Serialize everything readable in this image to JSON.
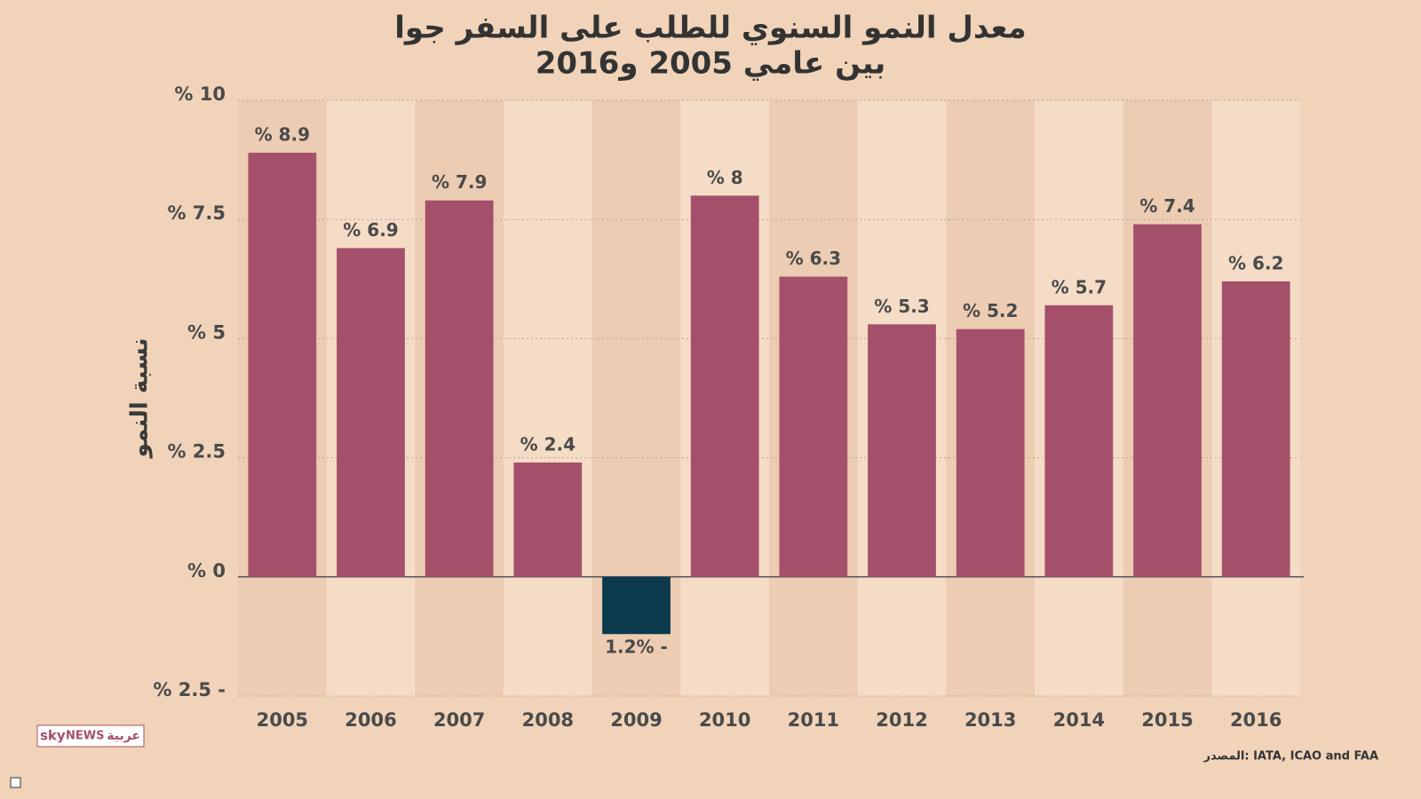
{
  "chart_data": {
    "type": "bar",
    "title": [
      "معدل النمو السنوي للطلب على السفر جوا",
      "بين عامي 2005 و2016"
    ],
    "y_label": "نسبة النمو",
    "source": "المصدر: IATA, ICAO and FAA",
    "logo": [
      "sky",
      "NEWS",
      "عربية"
    ],
    "categories": [
      "2005",
      "2006",
      "2007",
      "2008",
      "2009",
      "2010",
      "2011",
      "2012",
      "2013",
      "2014",
      "2015",
      "2016"
    ],
    "values": [
      8.9,
      6.9,
      7.9,
      2.4,
      -1.2,
      8,
      6.3,
      5.3,
      5.2,
      5.7,
      7.4,
      6.2
    ],
    "value_labels": [
      "% 8.9",
      "% 6.9",
      "% 7.9",
      "% 2.4",
      "1.2% -",
      "% 8",
      "% 6.3",
      "% 5.3",
      "% 5.2",
      "% 5.7",
      "% 7.4",
      "% 6.2"
    ],
    "color": "#a5506a",
    "negative_color": "#0c3b4d",
    "ylim": [
      -2.5,
      10
    ],
    "yticks": [
      {
        "value": -2.5,
        "label": "% 2.5 -"
      },
      {
        "value": 0,
        "label": "% 0"
      },
      {
        "value": 2.5,
        "label": "% 2.5"
      },
      {
        "value": 5,
        "label": "% 5"
      },
      {
        "value": 7.5,
        "label": "% 7.5"
      },
      {
        "value": 10,
        "label": "% 10"
      }
    ],
    "grid": true
  }
}
